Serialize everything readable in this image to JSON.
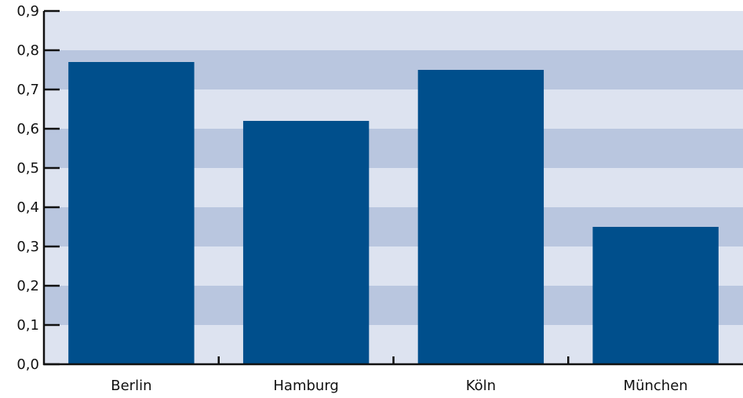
{
  "chart_data": {
    "type": "bar",
    "categories": [
      "Berlin",
      "Hamburg",
      "Köln",
      "München"
    ],
    "values": [
      0.77,
      0.62,
      0.75,
      0.35
    ],
    "ylim": [
      0,
      0.9
    ],
    "yticks": [
      "0,0",
      "0,1",
      "0,2",
      "0,3",
      "0,4",
      "0,5",
      "0,6",
      "0,7",
      "0,8",
      "0,9"
    ],
    "title": "",
    "xlabel": "",
    "ylabel": "",
    "grid": "alternating horizontal bands",
    "colors": {
      "bar": "#004f8c",
      "band_light": "#dde3f0",
      "band_dark": "#b9c6df",
      "axis": "#111111"
    }
  }
}
